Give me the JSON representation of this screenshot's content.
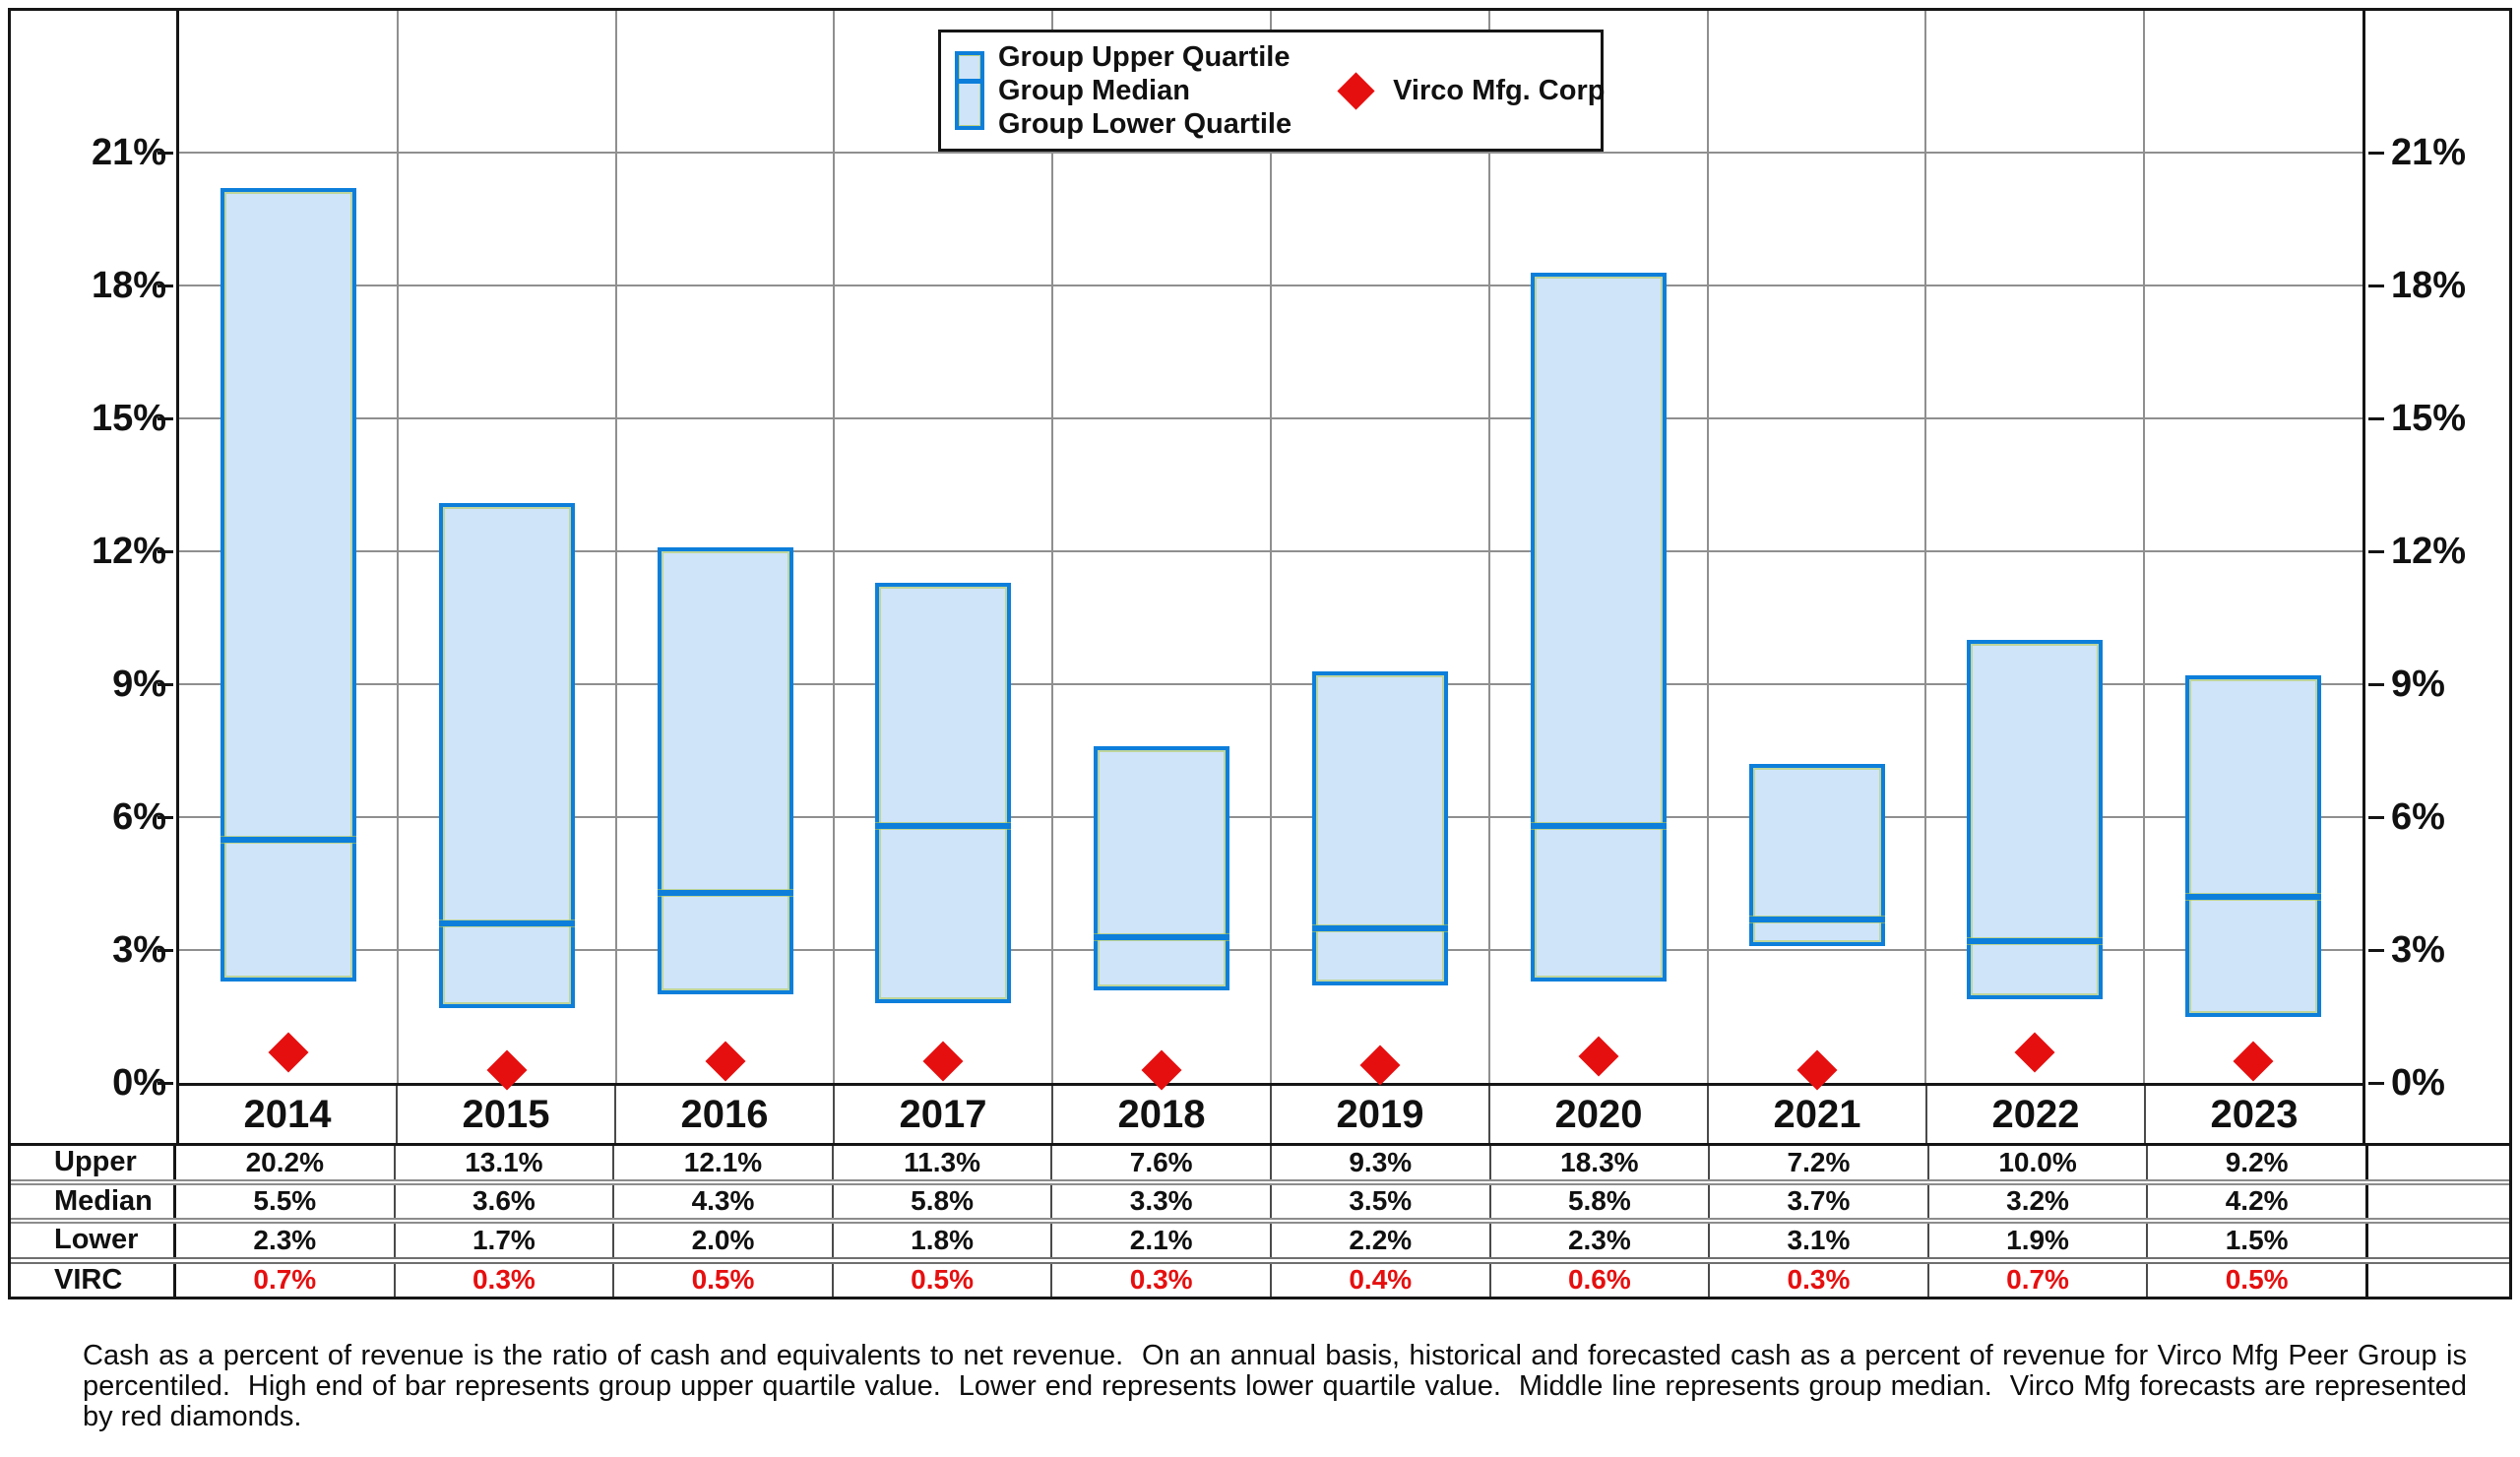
{
  "chart_data": {
    "type": "bar",
    "subtype": "floating-quartile-range-with-markers",
    "title": "",
    "xlabel": "",
    "ylabel": "",
    "categories": [
      "2014",
      "2015",
      "2016",
      "2017",
      "2018",
      "2019",
      "2020",
      "2021",
      "2022",
      "2023"
    ],
    "series": [
      {
        "name": "Upper",
        "role": "upper-quartile",
        "values": [
          20.2,
          13.1,
          12.1,
          11.3,
          7.6,
          9.3,
          18.3,
          7.2,
          10.0,
          9.2
        ]
      },
      {
        "name": "Median",
        "role": "median",
        "values": [
          5.5,
          3.6,
          4.3,
          5.8,
          3.3,
          3.5,
          5.8,
          3.7,
          3.2,
          4.2
        ]
      },
      {
        "name": "Lower",
        "role": "lower-quartile",
        "values": [
          2.3,
          1.7,
          2.0,
          1.8,
          2.1,
          2.2,
          2.3,
          3.1,
          1.9,
          1.5
        ]
      },
      {
        "name": "VIRC",
        "role": "marker",
        "values": [
          0.7,
          0.3,
          0.5,
          0.5,
          0.3,
          0.4,
          0.6,
          0.3,
          0.7,
          0.5
        ]
      }
    ],
    "ylim": [
      0,
      24.2
    ],
    "yticks": [
      0,
      3,
      6,
      9,
      12,
      15,
      18,
      21
    ],
    "ytick_suffix": "%",
    "grid": true,
    "y_axis_sides": [
      "left",
      "right"
    ],
    "legend_position": "top-center"
  },
  "legend": {
    "bar_items": [
      "Group Upper Quartile",
      "Group Median",
      "Group Lower Quartile"
    ],
    "marker_item": "Virco Mfg. Corp"
  },
  "table": {
    "row_labels": [
      "Upper",
      "Median",
      "Lower",
      "VIRC"
    ],
    "value_suffix": "%"
  },
  "footnote": "Cash as a percent of revenue is the ratio of cash and equivalents to net revenue.  On an annual basis, historical and forecasted cash as a percent of revenue for Virco Mfg Peer Group is percentiled.  High end of bar represents group upper quartile value.  Lower end represents lower quartile value.  Middle line represents group median.  Virco Mfg forecasts are represented by red diamonds.",
  "colors": {
    "bar_fill": "#cfe4f9",
    "bar_border": "#0d7fdb",
    "bar_inner_hairline": "#b2c94f",
    "marker_red": "#e60f0f",
    "grid": "#8f8f8f",
    "ink": "#151515"
  }
}
